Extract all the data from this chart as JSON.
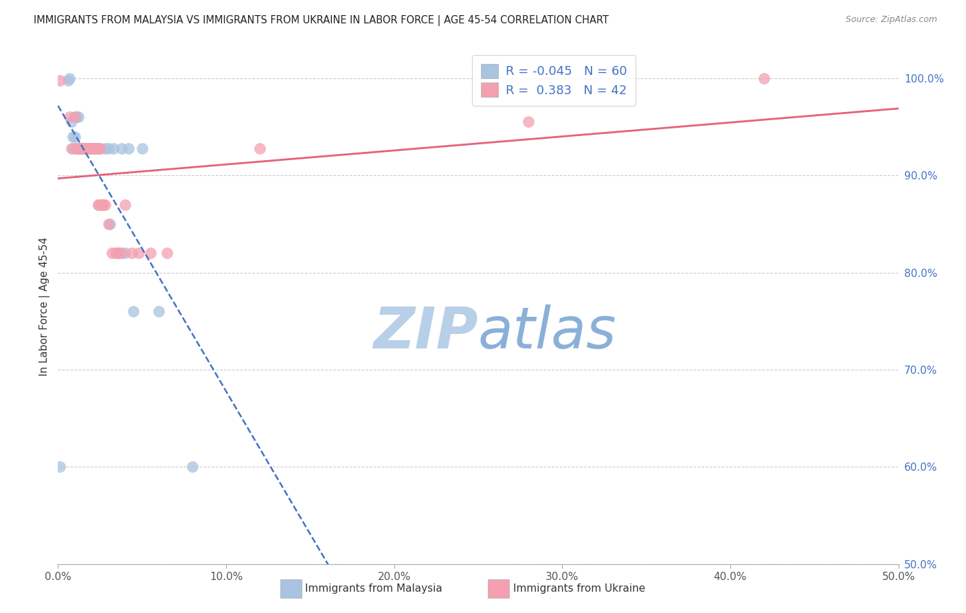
{
  "title": "IMMIGRANTS FROM MALAYSIA VS IMMIGRANTS FROM UKRAINE IN LABOR FORCE | AGE 45-54 CORRELATION CHART",
  "source": "Source: ZipAtlas.com",
  "ylabel": "In Labor Force | Age 45-54",
  "xlim": [
    0.0,
    0.5
  ],
  "ylim": [
    0.5,
    1.03
  ],
  "xticks": [
    0.0,
    0.1,
    0.2,
    0.3,
    0.4,
    0.5
  ],
  "yticks_right": [
    0.5,
    0.6,
    0.7,
    0.8,
    0.9,
    1.0
  ],
  "ytick_labels_right": [
    "50.0%",
    "60.0%",
    "70.0%",
    "80.0%",
    "90.0%",
    "100.0%"
  ],
  "xtick_labels": [
    "0.0%",
    "10.0%",
    "20.0%",
    "30.0%",
    "40.0%",
    "50.0%"
  ],
  "malaysia_R": -0.045,
  "malaysia_N": 60,
  "ukraine_R": 0.383,
  "ukraine_N": 42,
  "malaysia_color": "#a8c4e0",
  "ukraine_color": "#f4a0b0",
  "malaysia_line_color": "#4472c4",
  "ukraine_line_color": "#e8607a",
  "watermark_color": "#c8d8ea",
  "malaysia_x": [
    0.001,
    0.006,
    0.007,
    0.008,
    0.009,
    0.009,
    0.01,
    0.01,
    0.011,
    0.011,
    0.012,
    0.012,
    0.012,
    0.013,
    0.013,
    0.013,
    0.014,
    0.014,
    0.014,
    0.014,
    0.015,
    0.015,
    0.015,
    0.015,
    0.016,
    0.016,
    0.016,
    0.016,
    0.017,
    0.017,
    0.017,
    0.018,
    0.018,
    0.018,
    0.018,
    0.019,
    0.019,
    0.019,
    0.02,
    0.02,
    0.02,
    0.021,
    0.021,
    0.022,
    0.023,
    0.024,
    0.025,
    0.026,
    0.028,
    0.03,
    0.031,
    0.033,
    0.036,
    0.038,
    0.04,
    0.042,
    0.045,
    0.05,
    0.06,
    0.08
  ],
  "malaysia_y": [
    0.6,
    0.998,
    1.0,
    0.955,
    0.94,
    0.928,
    0.96,
    0.94,
    0.96,
    0.928,
    0.928,
    0.928,
    0.96,
    0.928,
    0.928,
    0.928,
    0.928,
    0.928,
    0.928,
    0.928,
    0.928,
    0.928,
    0.928,
    0.928,
    0.928,
    0.928,
    0.928,
    0.928,
    0.928,
    0.928,
    0.928,
    0.928,
    0.928,
    0.928,
    0.928,
    0.928,
    0.928,
    0.928,
    0.928,
    0.928,
    0.928,
    0.928,
    0.928,
    0.928,
    0.928,
    0.928,
    0.928,
    0.87,
    0.928,
    0.928,
    0.85,
    0.928,
    0.82,
    0.928,
    0.82,
    0.928,
    0.76,
    0.928,
    0.76,
    0.6
  ],
  "ukraine_x": [
    0.001,
    0.007,
    0.008,
    0.01,
    0.011,
    0.012,
    0.013,
    0.014,
    0.015,
    0.015,
    0.016,
    0.017,
    0.017,
    0.018,
    0.018,
    0.019,
    0.019,
    0.02,
    0.02,
    0.021,
    0.022,
    0.022,
    0.023,
    0.024,
    0.024,
    0.025,
    0.026,
    0.027,
    0.028,
    0.03,
    0.032,
    0.034,
    0.036,
    0.038,
    0.04,
    0.044,
    0.048,
    0.055,
    0.065,
    0.12,
    0.28,
    0.42
  ],
  "ukraine_y": [
    0.998,
    0.96,
    0.928,
    0.96,
    0.928,
    0.928,
    0.928,
    0.928,
    0.928,
    0.928,
    0.928,
    0.928,
    0.928,
    0.928,
    0.928,
    0.928,
    0.928,
    0.928,
    0.928,
    0.928,
    0.928,
    0.928,
    0.928,
    0.87,
    0.87,
    0.928,
    0.87,
    0.87,
    0.87,
    0.85,
    0.82,
    0.82,
    0.82,
    0.82,
    0.87,
    0.82,
    0.82,
    0.82,
    0.82,
    0.928,
    0.955,
    1.0
  ]
}
